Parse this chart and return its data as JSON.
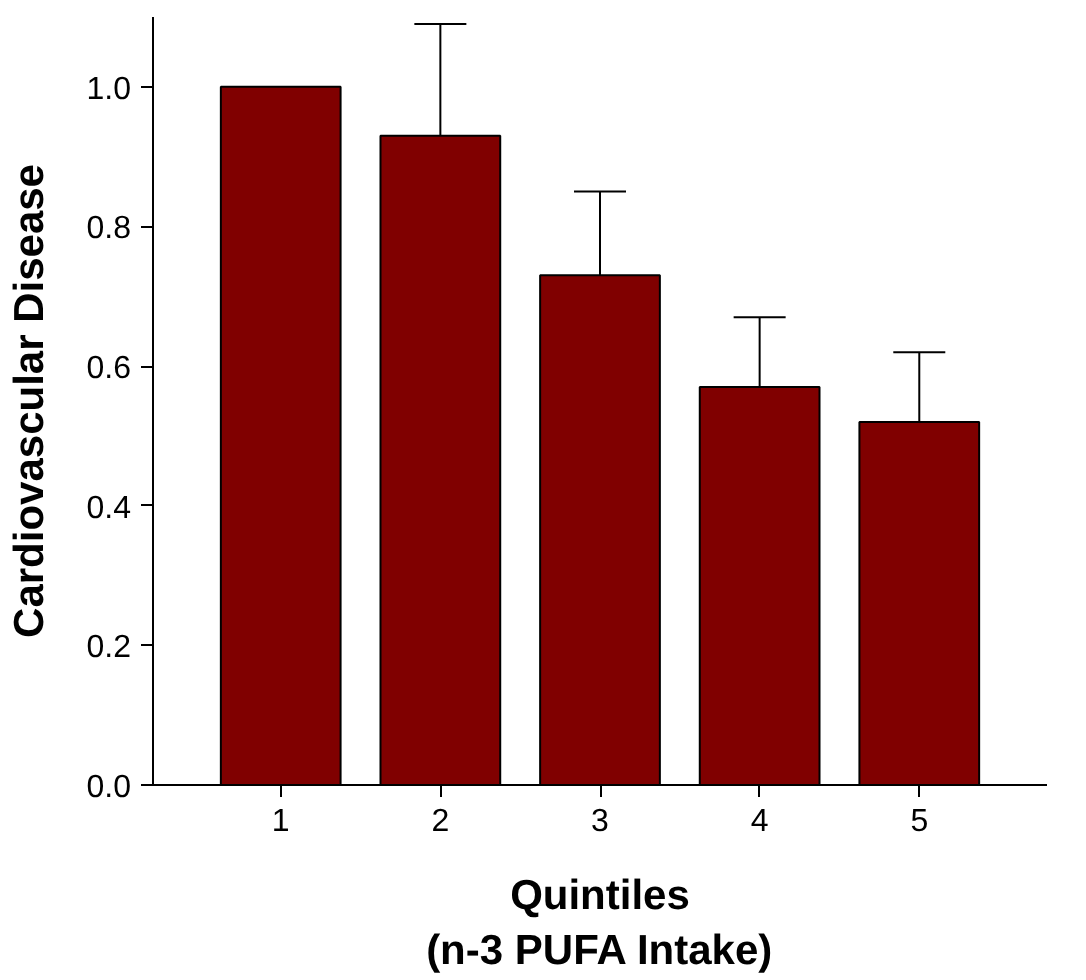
{
  "chart_data": {
    "type": "bar",
    "xlabel": "Quintiles\n(n-3 PUFA Intake)",
    "ylabel": "Cardiovascular Disease",
    "categories": [
      "1",
      "2",
      "3",
      "4",
      "5"
    ],
    "values": [
      1.0,
      0.93,
      0.73,
      0.57,
      0.52
    ],
    "errors": [
      null,
      [
        0.93,
        1.09
      ],
      [
        0.73,
        0.85
      ],
      [
        0.57,
        0.67
      ],
      [
        0.52,
        0.62
      ]
    ],
    "color": "#800000",
    "ylim": [
      0,
      1.1
    ],
    "yticks": [
      {
        "value": 0,
        "label": "0.0"
      },
      {
        "value": 0.2,
        "label": "0.2"
      },
      {
        "value": 0.4,
        "label": "0.4"
      },
      {
        "value": 0.6,
        "label": "0.6"
      },
      {
        "value": 0.8,
        "label": "0.8"
      },
      {
        "value": 1.0,
        "label": "1.0"
      }
    ],
    "grid": false
  }
}
